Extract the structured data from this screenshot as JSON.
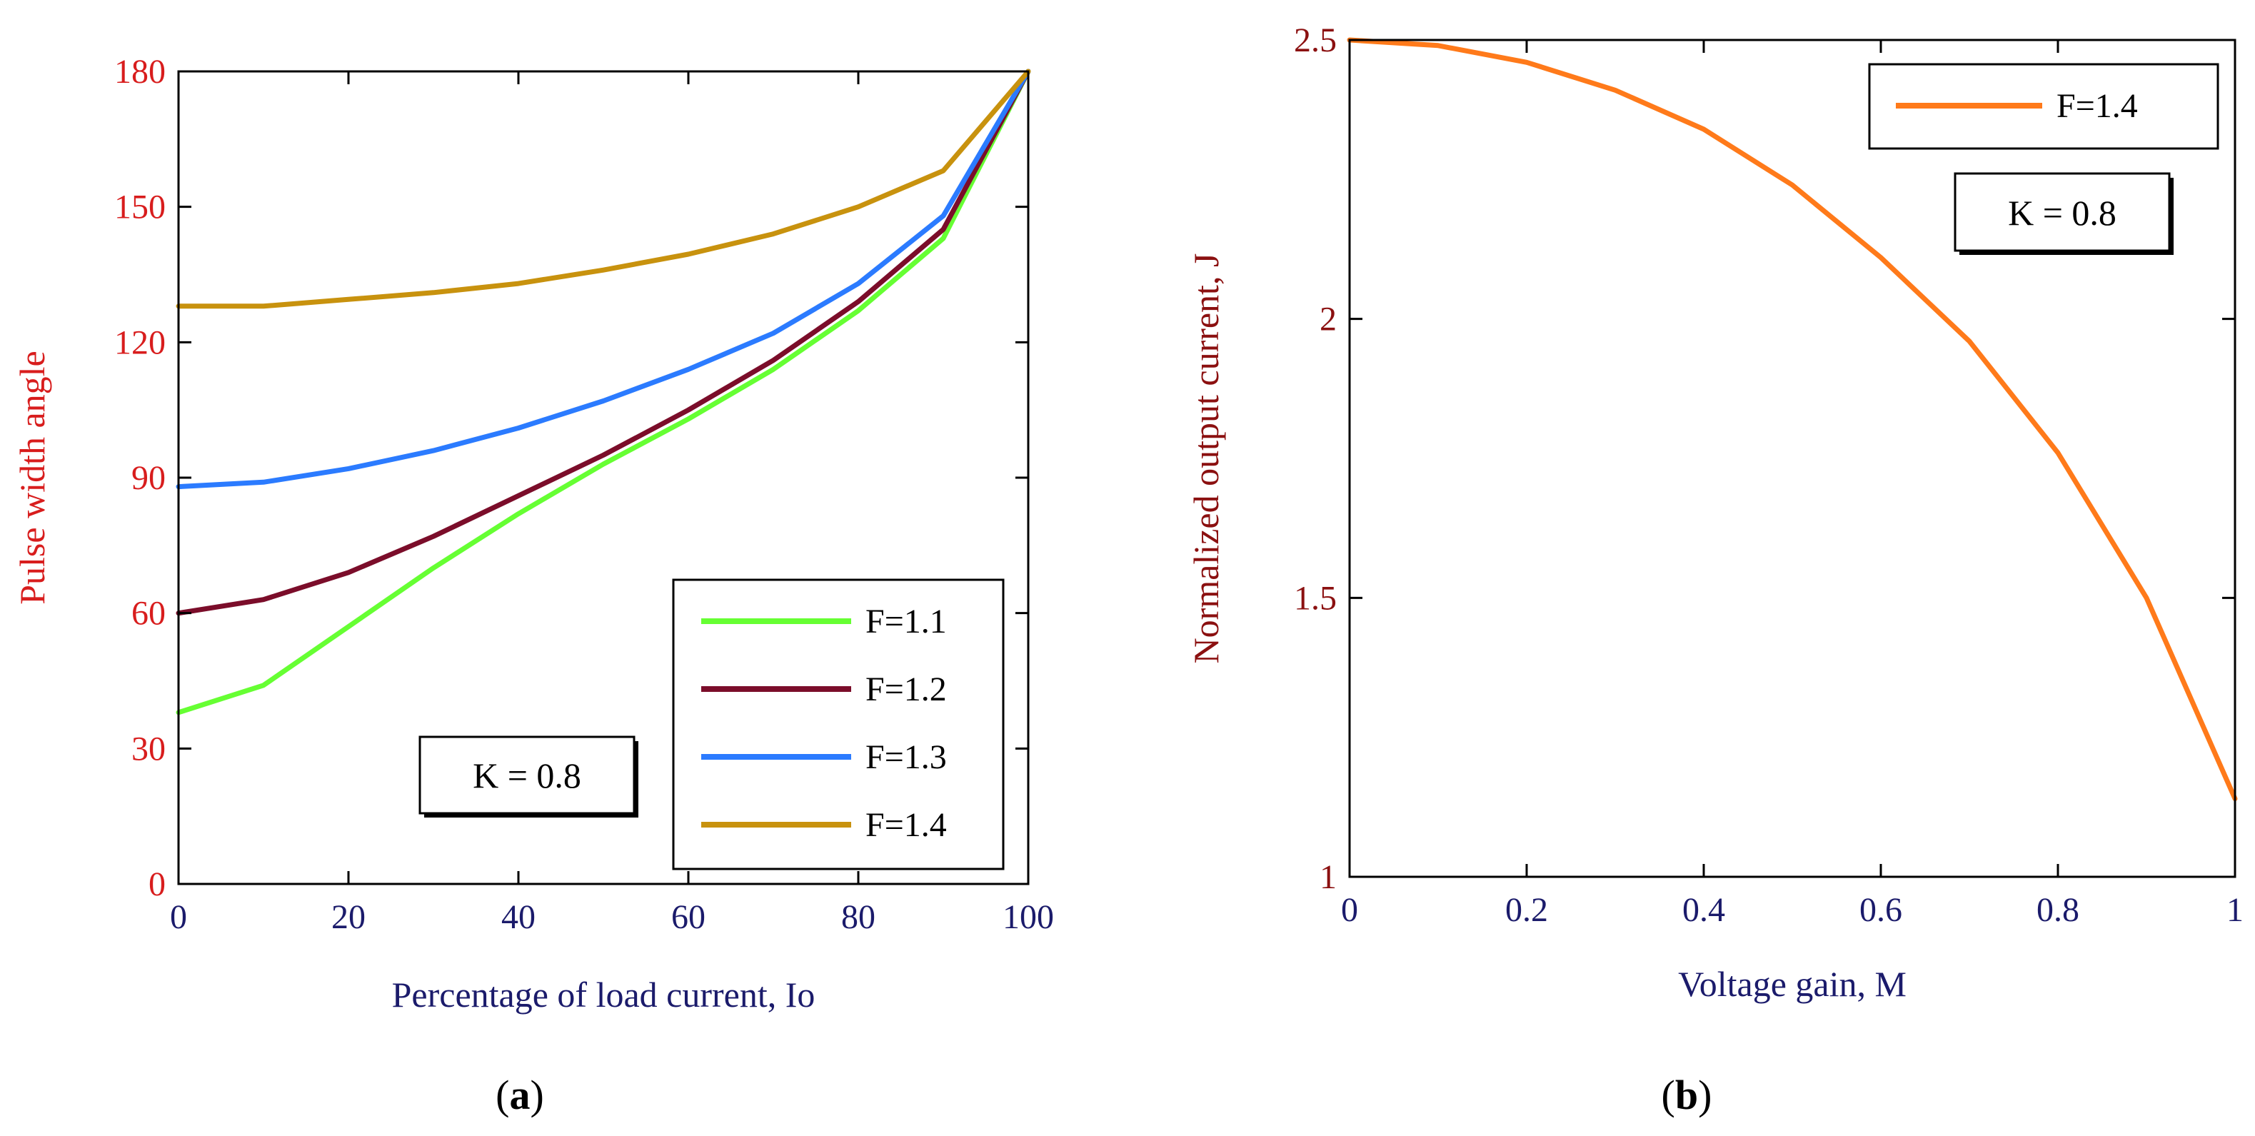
{
  "chart_data": [
    {
      "id": "a",
      "type": "line",
      "panel_label": "a",
      "xlabel": "Percentage of load current, Io",
      "ylabel": "Pulse width angle",
      "xlim": [
        0,
        100
      ],
      "ylim": [
        0,
        180
      ],
      "xticks": [
        0,
        20,
        40,
        60,
        80,
        100
      ],
      "yticks": [
        0,
        30,
        60,
        90,
        120,
        150,
        180
      ],
      "grid": false,
      "legend_position": "bottom-right",
      "annotation": "K = 0.8",
      "colors": {
        "xaxis": "#1b1b6b",
        "yaxis": "#d81d1d"
      },
      "series": [
        {
          "name": "F=1.1",
          "color": "#66ff33",
          "x": [
            0,
            10,
            20,
            30,
            40,
            50,
            60,
            70,
            80,
            90,
            100
          ],
          "y": [
            38,
            44,
            57,
            70,
            82,
            93,
            103,
            114,
            127,
            143,
            180
          ]
        },
        {
          "name": "F=1.2",
          "color": "#7b0d2a",
          "x": [
            0,
            10,
            20,
            30,
            40,
            50,
            60,
            70,
            80,
            90,
            100
          ],
          "y": [
            60,
            63,
            69,
            77,
            86,
            95,
            105,
            116,
            129,
            145,
            180
          ]
        },
        {
          "name": "F=1.3",
          "color": "#2b7bff",
          "x": [
            0,
            10,
            20,
            30,
            40,
            50,
            60,
            70,
            80,
            90,
            100
          ],
          "y": [
            88,
            89,
            92,
            96,
            101,
            107,
            114,
            122,
            133,
            148,
            180
          ]
        },
        {
          "name": "F=1.4",
          "color": "#c8920e",
          "x": [
            0,
            10,
            20,
            30,
            40,
            50,
            60,
            70,
            80,
            90,
            100
          ],
          "y": [
            128,
            128,
            129.5,
            131,
            133,
            136,
            139.5,
            144,
            150,
            158,
            180
          ]
        }
      ]
    },
    {
      "id": "b",
      "type": "line",
      "panel_label": "b",
      "xlabel": "Voltage gain, M",
      "ylabel": "Normalized output current, J",
      "xlim": [
        0,
        1
      ],
      "ylim": [
        1,
        2.5
      ],
      "xticks": [
        0,
        0.2,
        0.4,
        0.6,
        0.8,
        1
      ],
      "yticks": [
        1,
        1.5,
        2,
        2.5
      ],
      "grid": false,
      "legend_position": "top-right",
      "annotation": "K = 0.8",
      "colors": {
        "xaxis": "#1b1b6b",
        "yaxis": "#8b1010"
      },
      "series": [
        {
          "name": "F=1.4",
          "color": "#ff7a1a",
          "x": [
            0,
            0.1,
            0.2,
            0.3,
            0.4,
            0.5,
            0.6,
            0.7,
            0.8,
            0.9,
            1.0
          ],
          "y": [
            2.5,
            2.49,
            2.46,
            2.41,
            2.34,
            2.24,
            2.11,
            1.96,
            1.76,
            1.5,
            1.14
          ]
        }
      ]
    }
  ]
}
